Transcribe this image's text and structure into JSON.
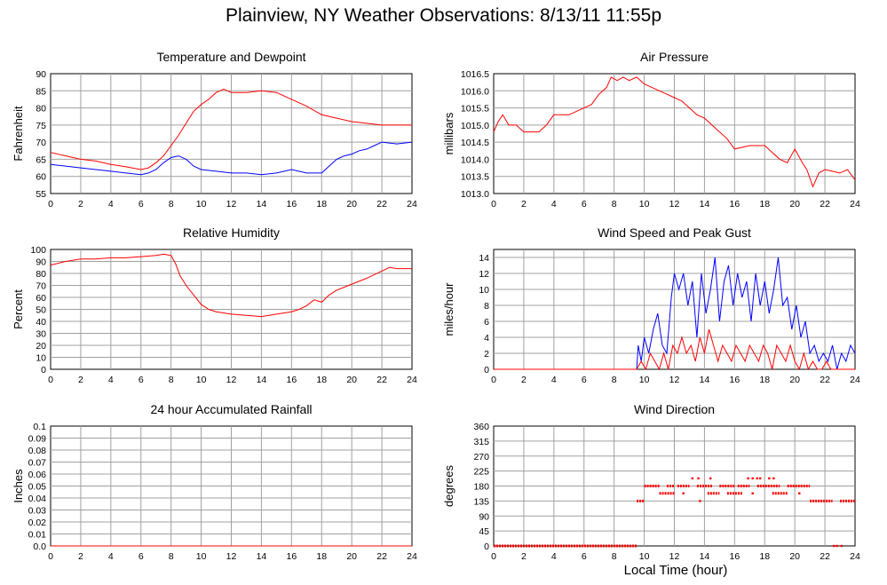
{
  "page": {
    "title": "Plainview, NY Weather Observations: 8/13/11 11:55p",
    "xlabel": "Local Time (hour)"
  },
  "chart_data": [
    {
      "type": "line",
      "title": "Temperature and Dewpoint",
      "xlabel": "",
      "ylabel": "Fahrenheit",
      "xlim": [
        0,
        24
      ],
      "ylim": [
        55,
        90
      ],
      "x_ticks": [
        0,
        2,
        4,
        6,
        8,
        10,
        12,
        14,
        16,
        18,
        20,
        22,
        24
      ],
      "y_ticks": [
        "55",
        "60",
        "65",
        "70",
        "75",
        "80",
        "85",
        "90"
      ],
      "grid": true,
      "series": [
        {
          "color": "#ff0000",
          "x": [
            0,
            1,
            2,
            3,
            4,
            5,
            6,
            6.5,
            7,
            7.5,
            8,
            8.5,
            9,
            9.5,
            10,
            10.5,
            11,
            11.5,
            12,
            13,
            14,
            15,
            15.5,
            16,
            17,
            18,
            19,
            20,
            21,
            22,
            23,
            24
          ],
          "y": [
            67,
            66,
            65,
            64.5,
            63.5,
            62.8,
            62,
            62.5,
            64,
            66,
            69,
            72,
            75.5,
            79,
            81,
            82.5,
            84.5,
            85.5,
            84.5,
            84.5,
            85,
            84.5,
            83.5,
            82.5,
            80.5,
            78,
            77,
            76,
            75.5,
            75,
            75,
            75
          ]
        },
        {
          "color": "#0000ff",
          "x": [
            0,
            1,
            2,
            3,
            4,
            5,
            6,
            6.5,
            7,
            7.5,
            8,
            8.5,
            9,
            9.5,
            10,
            11,
            12,
            13,
            14,
            15,
            16,
            17,
            18,
            18.5,
            19,
            19.5,
            20,
            20.5,
            21,
            21.5,
            22,
            23,
            24
          ],
          "y": [
            63.5,
            63,
            62.5,
            62,
            61.5,
            61,
            60.5,
            61,
            62,
            64,
            65.5,
            66,
            65,
            63,
            62,
            61.5,
            61,
            61,
            60.5,
            61,
            62,
            61,
            61,
            63,
            65,
            66,
            66.5,
            67.5,
            68,
            69,
            70,
            69.5,
            70
          ]
        }
      ]
    },
    {
      "type": "line",
      "title": "Air Pressure",
      "xlabel": "",
      "ylabel": "millibars",
      "xlim": [
        0,
        24
      ],
      "ylim": [
        1013.0,
        1016.5
      ],
      "x_ticks": [
        0,
        2,
        4,
        6,
        8,
        10,
        12,
        14,
        16,
        18,
        20,
        22,
        24
      ],
      "y_ticks": [
        "1013.0",
        "1013.5",
        "1014.0",
        "1014.5",
        "1015.0",
        "1015.5",
        "1016.0",
        "1016.5"
      ],
      "grid": true,
      "series": [
        {
          "color": "#ff0000",
          "x": [
            0,
            0.3,
            0.6,
            1,
            1.5,
            2,
            3,
            3.5,
            4,
            5,
            5.5,
            6,
            6.5,
            7,
            7.5,
            7.8,
            8.2,
            8.6,
            9,
            9.5,
            10,
            10.5,
            11,
            11.5,
            12,
            12.5,
            13,
            13.5,
            14,
            14.5,
            15,
            15.5,
            16,
            17,
            18,
            19,
            19.5,
            20,
            20.5,
            20.8,
            21.2,
            21.6,
            22,
            23,
            23.5,
            24
          ],
          "y": [
            1014.8,
            1015.1,
            1015.3,
            1015.0,
            1015.0,
            1014.8,
            1014.8,
            1015.0,
            1015.3,
            1015.3,
            1015.4,
            1015.5,
            1015.6,
            1015.9,
            1016.1,
            1016.4,
            1016.3,
            1016.4,
            1016.3,
            1016.4,
            1016.2,
            1016.1,
            1016.0,
            1015.9,
            1015.8,
            1015.7,
            1015.5,
            1015.3,
            1015.2,
            1015.0,
            1014.8,
            1014.6,
            1014.3,
            1014.4,
            1014.4,
            1014.0,
            1013.9,
            1014.3,
            1013.9,
            1013.7,
            1013.2,
            1013.6,
            1013.7,
            1013.6,
            1013.7,
            1013.4
          ]
        }
      ]
    },
    {
      "type": "line",
      "title": "Relative Humidity",
      "xlabel": "",
      "ylabel": "Percent",
      "xlim": [
        0,
        24
      ],
      "ylim": [
        0,
        100
      ],
      "x_ticks": [
        0,
        2,
        4,
        6,
        8,
        10,
        12,
        14,
        16,
        18,
        20,
        22,
        24
      ],
      "y_ticks": [
        "0",
        "10",
        "20",
        "30",
        "40",
        "50",
        "60",
        "70",
        "80",
        "90",
        "100"
      ],
      "grid": true,
      "series": [
        {
          "color": "#ff0000",
          "x": [
            0,
            1,
            2,
            3,
            4,
            5,
            6,
            7,
            7.5,
            8,
            8.3,
            8.6,
            9,
            9.5,
            10,
            10.5,
            11,
            12,
            13,
            14,
            15,
            16,
            16.5,
            17,
            17.5,
            18,
            18.5,
            19,
            20,
            21,
            22,
            22.5,
            23,
            24
          ],
          "y": [
            87,
            90,
            92,
            92,
            93,
            93,
            94,
            95,
            96,
            95,
            88,
            78,
            70,
            62,
            54,
            50,
            48,
            46,
            45,
            44,
            46,
            48,
            50,
            53,
            58,
            56,
            62,
            66,
            71,
            76,
            82,
            85,
            84,
            84
          ]
        }
      ]
    },
    {
      "type": "line",
      "title": "Wind Speed and Peak Gust",
      "xlabel": "",
      "ylabel": "miles/hour",
      "xlim": [
        0,
        24
      ],
      "ylim": [
        0,
        15
      ],
      "x_ticks": [
        0,
        2,
        4,
        6,
        8,
        10,
        12,
        14,
        16,
        18,
        20,
        22,
        24
      ],
      "y_ticks": [
        "0",
        "2",
        "4",
        "6",
        "8",
        "10",
        "12",
        "14"
      ],
      "grid": true,
      "series": [
        {
          "color": "#0000ff",
          "x": [
            0,
            9.5,
            9.6,
            9.8,
            10,
            10.3,
            10.6,
            10.9,
            11.2,
            11.5,
            11.8,
            12,
            12.3,
            12.6,
            12.9,
            13.2,
            13.5,
            13.8,
            14.1,
            14.4,
            14.7,
            15,
            15.3,
            15.6,
            15.9,
            16.2,
            16.5,
            16.8,
            17.1,
            17.4,
            17.7,
            18,
            18.3,
            18.6,
            18.9,
            19.2,
            19.5,
            19.8,
            20.1,
            20.4,
            20.7,
            21,
            21.3,
            21.6,
            21.9,
            22.2,
            22.5,
            22.8,
            23.1,
            23.4,
            23.7,
            24
          ],
          "y": [
            0,
            0,
            3,
            1,
            4,
            2,
            5,
            7,
            3,
            2,
            9,
            12,
            10,
            12,
            8,
            11,
            4,
            12,
            7,
            10,
            14,
            6,
            11,
            13,
            8,
            12,
            9,
            11,
            6,
            12,
            8,
            11,
            7,
            10,
            14,
            8,
            9,
            5,
            8,
            4,
            6,
            2,
            3,
            1,
            2,
            1,
            3,
            0,
            2,
            1,
            3,
            2
          ]
        },
        {
          "color": "#ff0000",
          "x": [
            0,
            9.5,
            9.8,
            10.1,
            10.4,
            10.7,
            11,
            11.3,
            11.6,
            11.9,
            12.2,
            12.5,
            12.8,
            13.1,
            13.4,
            13.7,
            14,
            14.3,
            14.6,
            14.9,
            15.2,
            15.5,
            15.8,
            16.1,
            16.4,
            16.7,
            17,
            17.3,
            17.6,
            17.9,
            18.2,
            18.5,
            18.8,
            19.1,
            19.4,
            19.7,
            20,
            20.3,
            20.6,
            20.9,
            21.2,
            21.5,
            21.8,
            22.1,
            22.4,
            22.7,
            23,
            24
          ],
          "y": [
            0,
            0,
            1,
            0,
            2,
            1,
            0,
            2,
            0,
            3,
            2,
            4,
            2,
            3,
            1,
            4,
            2,
            5,
            3,
            1,
            3,
            2,
            1,
            3,
            2,
            1,
            3,
            2,
            1,
            3,
            2,
            0,
            3,
            2,
            1,
            3,
            1,
            0,
            2,
            0,
            1,
            0,
            0,
            1,
            0,
            0,
            0,
            0
          ]
        }
      ]
    },
    {
      "type": "line",
      "title": "24 hour Accumulated Rainfall",
      "xlabel": "",
      "ylabel": "Inches",
      "xlim": [
        0,
        24
      ],
      "ylim": [
        0,
        0.1
      ],
      "x_ticks": [
        0,
        2,
        4,
        6,
        8,
        10,
        12,
        14,
        16,
        18,
        20,
        22,
        24
      ],
      "y_ticks": [
        "0.0",
        "0.01",
        "0.02",
        "0.03",
        "0.04",
        "0.05",
        "0.06",
        "0.07",
        "0.08",
        "0.09",
        "0.1"
      ],
      "grid": true,
      "series": [
        {
          "color": "#ff0000",
          "x": [
            0,
            24
          ],
          "y": [
            0,
            0
          ]
        }
      ]
    },
    {
      "type": "scatter",
      "title": "Wind Direction",
      "xlabel": "Local Time (hour)",
      "ylabel": "degrees",
      "xlim": [
        0,
        24
      ],
      "ylim": [
        0,
        360
      ],
      "x_ticks": [
        0,
        2,
        4,
        6,
        8,
        10,
        12,
        14,
        16,
        18,
        20,
        22,
        24
      ],
      "y_ticks": [
        "0",
        "45",
        "90",
        "135",
        "180",
        "225",
        "270",
        "315",
        "360"
      ],
      "grid": true,
      "series": [
        {
          "color": "#ff0000",
          "segments": [
            {
              "y": 0,
              "x": [
                0,
                9.5
              ]
            },
            {
              "y": 135,
              "x": [
                9.5,
                10.0
              ]
            },
            {
              "y": 180,
              "x": [
                10.0,
                11.0
              ]
            },
            {
              "y": 180,
              "x": [
                11.5,
                12.0
              ]
            },
            {
              "y": 180,
              "x": [
                12.2,
                13.0
              ]
            },
            {
              "y": 180,
              "x": [
                13.5,
                14.5
              ]
            },
            {
              "y": 180,
              "x": [
                15.0,
                16.0
              ]
            },
            {
              "y": 180,
              "x": [
                16.2,
                17.0
              ]
            },
            {
              "y": 180,
              "x": [
                17.5,
                19.0
              ]
            },
            {
              "y": 180,
              "x": [
                19.5,
                21.0
              ]
            },
            {
              "y": 158,
              "x": [
                11.0,
                12.0
              ]
            },
            {
              "y": 158,
              "x": [
                14.2,
                15.0
              ]
            },
            {
              "y": 158,
              "x": [
                15.5,
                16.5
              ]
            },
            {
              "y": 158,
              "x": [
                18.5,
                19.5
              ]
            },
            {
              "y": 135,
              "x": [
                21.0,
                22.5
              ]
            },
            {
              "y": 135,
              "x": [
                23.0,
                24.0
              ]
            }
          ],
          "points": [
            {
              "x": 13.2,
              "y": 203
            },
            {
              "x": 13.6,
              "y": 203
            },
            {
              "x": 14.4,
              "y": 203
            },
            {
              "x": 16.9,
              "y": 203
            },
            {
              "x": 17.2,
              "y": 203
            },
            {
              "x": 17.5,
              "y": 203
            },
            {
              "x": 17.7,
              "y": 203
            },
            {
              "x": 18.3,
              "y": 203
            },
            {
              "x": 18.6,
              "y": 203
            },
            {
              "x": 13.7,
              "y": 135
            },
            {
              "x": 12.6,
              "y": 158
            },
            {
              "x": 17.2,
              "y": 158
            },
            {
              "x": 20.3,
              "y": 158
            },
            {
              "x": 22.6,
              "y": 0
            },
            {
              "x": 22.8,
              "y": 0
            },
            {
              "x": 23.1,
              "y": 0
            }
          ]
        }
      ]
    }
  ]
}
